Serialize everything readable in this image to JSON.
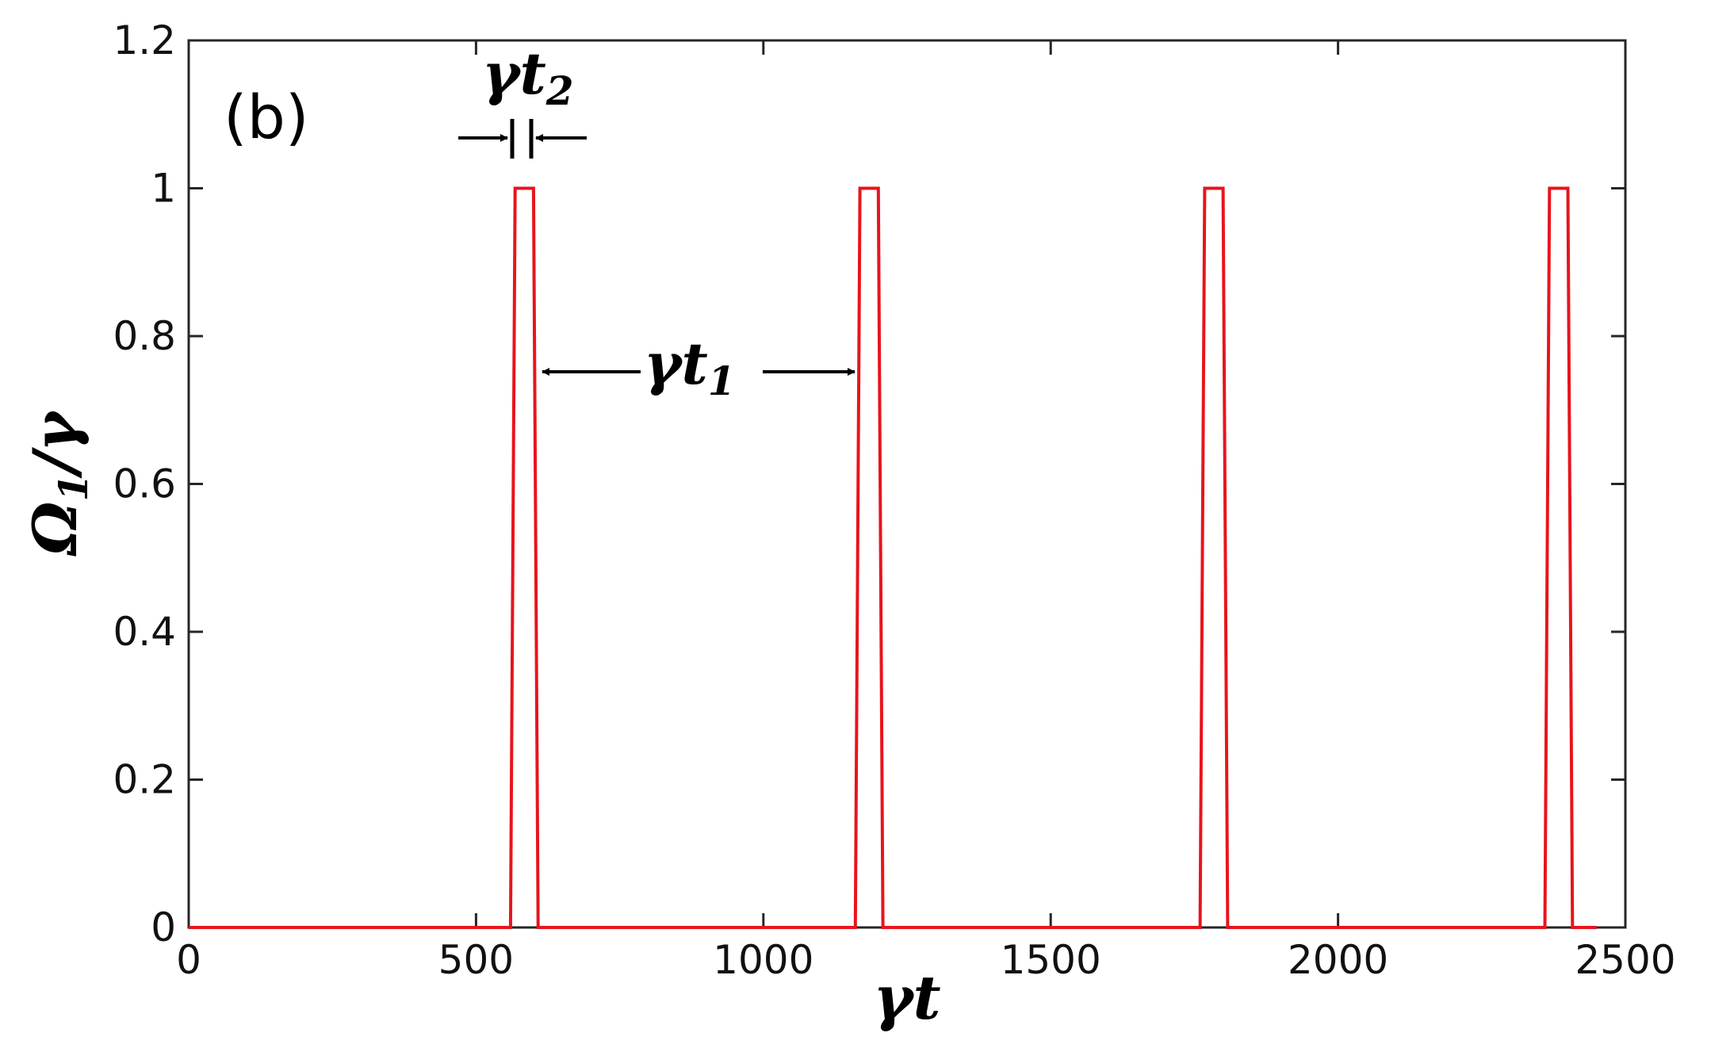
{
  "chart_data": {
    "type": "line",
    "panel_label": "(b)",
    "xlabel": {
      "main": "γt",
      "sub": ""
    },
    "ylabel": {
      "main": "Ω",
      "sub": "1",
      "tail": "/γ"
    },
    "xlim": [
      0,
      2500
    ],
    "ylim": [
      0,
      1.2
    ],
    "xticks": [
      "0",
      "500",
      "1000",
      "1500",
      "2000",
      "2500"
    ],
    "yticks": [
      "0",
      "0.2",
      "0.4",
      "0.6",
      "0.8",
      "1",
      "1.2"
    ],
    "grid": false,
    "line_color": "#e8141c",
    "series": [
      {
        "x": [
          0,
          560,
          568,
          600,
          608,
          1160,
          1168,
          1200,
          1208,
          1760,
          1768,
          1800,
          1808,
          2360,
          2368,
          2400,
          2408,
          2450
        ],
        "values": [
          0,
          0,
          1,
          1,
          0,
          0,
          1,
          1,
          0,
          0,
          1,
          1,
          0,
          0,
          1,
          1,
          0,
          0
        ]
      }
    ],
    "annotations": [
      {
        "main": "γt",
        "sub": "2",
        "desc": "pulse width"
      },
      {
        "main": "γt",
        "sub": "1",
        "desc": "pulse spacing"
      }
    ]
  }
}
